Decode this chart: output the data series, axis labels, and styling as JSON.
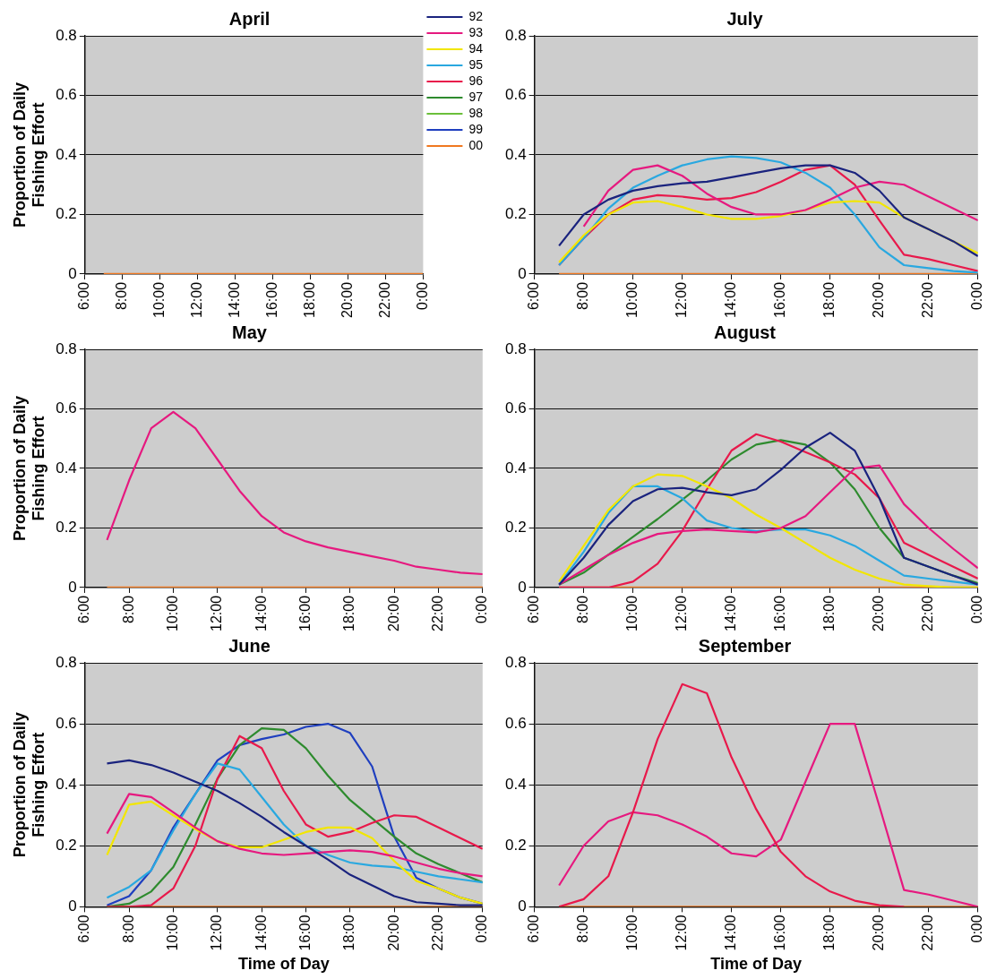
{
  "chart_data": [
    {
      "type": "line",
      "title": "April",
      "ylabel": "Proportion of Daily\nFishing Effort",
      "x": [
        7,
        8,
        9,
        10,
        11,
        12,
        13,
        14,
        15,
        16,
        17,
        18,
        19,
        20,
        21,
        22,
        23,
        24
      ],
      "xlim": [
        6,
        24
      ],
      "xticks": [
        {
          "value": 6,
          "label": "6:00"
        },
        {
          "value": 8,
          "label": "8:00"
        },
        {
          "value": 10,
          "label": "10:00"
        },
        {
          "value": 12,
          "label": "12:00"
        },
        {
          "value": 14,
          "label": "14:00"
        },
        {
          "value": 16,
          "label": "16:00"
        },
        {
          "value": 18,
          "label": "18:00"
        },
        {
          "value": 20,
          "label": "20:00"
        },
        {
          "value": 22,
          "label": "22:00"
        },
        {
          "value": 24,
          "label": "0:00"
        }
      ],
      "ylim": [
        0,
        0.8
      ],
      "yticks": [
        0,
        0.2,
        0.4,
        0.6,
        0.8
      ],
      "grid": "y",
      "legend": "top right",
      "series": [
        {
          "name": "92",
          "color": "#1a237e",
          "values": [
            null,
            null,
            null,
            null,
            null,
            null,
            null,
            null,
            null,
            null,
            null,
            null,
            null,
            null,
            null,
            null,
            null,
            null
          ]
        },
        {
          "name": "93",
          "color": "#e6197f",
          "values": [
            null,
            null,
            null,
            null,
            null,
            null,
            null,
            null,
            null,
            null,
            null,
            null,
            null,
            null,
            null,
            null,
            null,
            null
          ]
        },
        {
          "name": "94",
          "color": "#f2e600",
          "values": [
            null,
            null,
            null,
            null,
            null,
            null,
            null,
            null,
            null,
            null,
            null,
            null,
            null,
            null,
            null,
            null,
            null,
            null
          ]
        },
        {
          "name": "95",
          "color": "#29a8e0",
          "values": [
            null,
            null,
            null,
            null,
            null,
            null,
            null,
            null,
            null,
            null,
            null,
            null,
            null,
            null,
            null,
            null,
            null,
            null
          ]
        },
        {
          "name": "96",
          "color": "#e8194b",
          "values": [
            null,
            null,
            null,
            null,
            null,
            null,
            null,
            null,
            null,
            null,
            null,
            null,
            null,
            null,
            null,
            null,
            null,
            null
          ]
        },
        {
          "name": "97",
          "color": "#2e8b2e",
          "values": [
            null,
            null,
            null,
            null,
            null,
            null,
            null,
            null,
            null,
            null,
            null,
            null,
            null,
            null,
            null,
            null,
            null,
            null
          ]
        },
        {
          "name": "98",
          "color": "#6abf3a",
          "values": [
            null,
            null,
            null,
            null,
            null,
            null,
            null,
            null,
            null,
            null,
            null,
            null,
            null,
            null,
            null,
            null,
            null,
            null
          ]
        },
        {
          "name": "99",
          "color": "#1f3fbf",
          "values": [
            null,
            null,
            null,
            null,
            null,
            null,
            null,
            null,
            null,
            null,
            null,
            null,
            null,
            null,
            null,
            null,
            null,
            null
          ]
        },
        {
          "name": "00",
          "color": "#f07820",
          "values": [
            0,
            0,
            0,
            0,
            0,
            0,
            0,
            0,
            0,
            0,
            0,
            0,
            0,
            0,
            0,
            0,
            0,
            0
          ]
        }
      ]
    },
    {
      "type": "line",
      "title": "July",
      "x": [
        7,
        8,
        9,
        10,
        11,
        12,
        13,
        14,
        15,
        16,
        17,
        18,
        19,
        20,
        21,
        22,
        23,
        24
      ],
      "xlim": [
        6,
        24
      ],
      "xticks": [
        {
          "value": 6,
          "label": "6:00"
        },
        {
          "value": 8,
          "label": "8:00"
        },
        {
          "value": 10,
          "label": "10:00"
        },
        {
          "value": 12,
          "label": "12:00"
        },
        {
          "value": 14,
          "label": "14:00"
        },
        {
          "value": 16,
          "label": "16:00"
        },
        {
          "value": 18,
          "label": "18:00"
        },
        {
          "value": 20,
          "label": "20:00"
        },
        {
          "value": 22,
          "label": "22:00"
        },
        {
          "value": 24,
          "label": "0:00"
        }
      ],
      "ylim": [
        0,
        0.8
      ],
      "yticks": [
        0,
        0.2,
        0.4,
        0.6,
        0.8
      ],
      "grid": "y",
      "series": [
        {
          "color": "#1a237e",
          "values": [
            0.095,
            0.2,
            0.25,
            0.28,
            0.295,
            0.305,
            0.31,
            0.325,
            0.34,
            0.355,
            0.365,
            0.365,
            0.34,
            0.28,
            0.19,
            0.15,
            0.11,
            0.06
          ]
        },
        {
          "color": "#e6197f",
          "values": [
            null,
            0.16,
            0.28,
            0.35,
            0.365,
            0.33,
            0.27,
            0.225,
            0.2,
            0.2,
            0.215,
            0.25,
            0.29,
            0.31,
            0.3,
            0.26,
            0.22,
            0.18
          ]
        },
        {
          "color": "#f2e600",
          "values": [
            0.04,
            0.13,
            0.2,
            0.24,
            0.245,
            0.225,
            0.2,
            0.185,
            0.185,
            0.195,
            0.215,
            0.24,
            0.245,
            0.24,
            0.19,
            0.15,
            0.11,
            0.07
          ]
        },
        {
          "color": "#29a8e0",
          "values": [
            0.03,
            0.12,
            0.22,
            0.29,
            0.33,
            0.365,
            0.385,
            0.395,
            0.39,
            0.375,
            0.34,
            0.29,
            0.2,
            0.09,
            0.03,
            0.02,
            0.01,
            0.005
          ]
        },
        {
          "color": "#e8194b",
          "values": [
            0.03,
            0.12,
            0.2,
            0.25,
            0.265,
            0.26,
            0.25,
            0.255,
            0.275,
            0.31,
            0.35,
            0.365,
            0.3,
            0.18,
            0.065,
            0.05,
            0.03,
            0.01
          ]
        },
        {
          "color": "#f07820",
          "values": [
            0,
            0,
            0,
            0,
            0,
            0,
            0,
            0,
            0,
            0,
            0,
            0,
            0,
            0,
            0,
            0,
            0,
            0
          ]
        }
      ]
    },
    {
      "type": "line",
      "title": "May",
      "ylabel": "Proportion of Daily\nFishing Effort",
      "x": [
        7,
        8,
        9,
        10,
        11,
        12,
        13,
        14,
        15,
        16,
        17,
        18,
        19,
        20,
        21,
        22,
        23,
        24
      ],
      "xlim": [
        6,
        24
      ],
      "xticks": [
        {
          "value": 6,
          "label": "6:00"
        },
        {
          "value": 8,
          "label": "8:00"
        },
        {
          "value": 10,
          "label": "10:00"
        },
        {
          "value": 12,
          "label": "12:00"
        },
        {
          "value": 14,
          "label": "14:00"
        },
        {
          "value": 16,
          "label": "16:00"
        },
        {
          "value": 18,
          "label": "18:00"
        },
        {
          "value": 20,
          "label": "20:00"
        },
        {
          "value": 22,
          "label": "22:00"
        },
        {
          "value": 24,
          "label": "0:00"
        }
      ],
      "ylim": [
        0,
        0.8
      ],
      "yticks": [
        0,
        0.2,
        0.4,
        0.6,
        0.8
      ],
      "grid": "y",
      "series": [
        {
          "color": "#e6197f",
          "values": [
            0.16,
            0.36,
            0.535,
            0.59,
            0.535,
            0.43,
            0.325,
            0.24,
            0.185,
            0.155,
            0.135,
            0.12,
            0.105,
            0.09,
            0.07,
            0.06,
            0.05,
            0.045
          ]
        },
        {
          "color": "#f07820",
          "values": [
            0,
            0,
            0,
            0,
            0,
            0,
            0,
            0,
            0,
            0,
            0,
            0,
            0,
            0,
            0,
            0,
            0,
            0
          ]
        }
      ]
    },
    {
      "type": "line",
      "title": "August",
      "x": [
        7,
        8,
        9,
        10,
        11,
        12,
        13,
        14,
        15,
        16,
        17,
        18,
        19,
        20,
        21,
        22,
        23,
        24
      ],
      "xlim": [
        6,
        24
      ],
      "xticks": [
        {
          "value": 6,
          "label": "6:00"
        },
        {
          "value": 8,
          "label": "8:00"
        },
        {
          "value": 10,
          "label": "10:00"
        },
        {
          "value": 12,
          "label": "12:00"
        },
        {
          "value": 14,
          "label": "14:00"
        },
        {
          "value": 16,
          "label": "16:00"
        },
        {
          "value": 18,
          "label": "18:00"
        },
        {
          "value": 20,
          "label": "20:00"
        },
        {
          "value": 22,
          "label": "22:00"
        },
        {
          "value": 24,
          "label": "0:00"
        }
      ],
      "ylim": [
        0,
        0.8
      ],
      "yticks": [
        0,
        0.2,
        0.4,
        0.6,
        0.8
      ],
      "grid": "y",
      "series": [
        {
          "color": "#1a237e",
          "values": [
            0.01,
            0.1,
            0.21,
            0.29,
            0.33,
            0.335,
            0.32,
            0.31,
            0.33,
            0.395,
            0.47,
            0.52,
            0.46,
            0.3,
            0.1,
            0.07,
            0.04,
            0.01
          ]
        },
        {
          "color": "#e6197f",
          "values": [
            0.01,
            0.06,
            0.11,
            0.15,
            0.18,
            0.19,
            0.195,
            0.19,
            0.185,
            0.2,
            0.24,
            0.32,
            0.4,
            0.41,
            0.28,
            0.2,
            0.13,
            0.065
          ]
        },
        {
          "color": "#f2e600",
          "values": [
            0.02,
            0.14,
            0.26,
            0.34,
            0.38,
            0.375,
            0.34,
            0.3,
            0.245,
            0.2,
            0.15,
            0.1,
            0.06,
            0.03,
            0.01,
            0.005,
            0,
            0
          ]
        },
        {
          "color": "#29a8e0",
          "values": [
            0.01,
            0.12,
            0.25,
            0.34,
            0.34,
            0.3,
            0.225,
            0.2,
            0.19,
            0.195,
            0.195,
            0.175,
            0.14,
            0.09,
            0.04,
            0.03,
            0.02,
            0.01
          ]
        },
        {
          "color": "#e8194b",
          "values": [
            0,
            0,
            0,
            0.02,
            0.08,
            0.19,
            0.33,
            0.46,
            0.515,
            0.49,
            0.455,
            0.42,
            0.38,
            0.3,
            0.15,
            0.11,
            0.07,
            0.03
          ]
        },
        {
          "color": "#2e8b2e",
          "values": [
            0.01,
            0.05,
            0.11,
            0.17,
            0.23,
            0.295,
            0.36,
            0.43,
            0.48,
            0.495,
            0.48,
            0.42,
            0.33,
            0.2,
            0.1,
            0.07,
            0.04,
            0.015
          ]
        },
        {
          "color": "#f07820",
          "values": [
            0,
            0,
            0,
            0,
            0,
            0,
            0,
            0,
            0,
            0,
            0,
            0,
            0,
            0,
            0,
            0,
            0,
            0
          ]
        }
      ]
    },
    {
      "type": "line",
      "title": "June",
      "ylabel": "Proportion of Daily\nFishing Effort",
      "xlabel": "Time of Day",
      "x": [
        7,
        8,
        9,
        10,
        11,
        12,
        13,
        14,
        15,
        16,
        17,
        18,
        19,
        20,
        21,
        22,
        23,
        24
      ],
      "xlim": [
        6,
        24
      ],
      "xticks": [
        {
          "value": 6,
          "label": "6:00"
        },
        {
          "value": 8,
          "label": "8:00"
        },
        {
          "value": 10,
          "label": "10:00"
        },
        {
          "value": 12,
          "label": "12:00"
        },
        {
          "value": 14,
          "label": "14:00"
        },
        {
          "value": 16,
          "label": "16:00"
        },
        {
          "value": 18,
          "label": "18:00"
        },
        {
          "value": 20,
          "label": "20:00"
        },
        {
          "value": 22,
          "label": "22:00"
        },
        {
          "value": 24,
          "label": "0:00"
        }
      ],
      "ylim": [
        0,
        0.8
      ],
      "yticks": [
        0,
        0.2,
        0.4,
        0.6,
        0.8
      ],
      "grid": "y",
      "series": [
        {
          "color": "#1a237e",
          "values": [
            0.47,
            0.48,
            0.465,
            0.44,
            0.41,
            0.38,
            0.34,
            0.295,
            0.245,
            0.2,
            0.155,
            0.105,
            0.07,
            0.035,
            0.015,
            0.01,
            0.005,
            0.005
          ]
        },
        {
          "color": "#e6197f",
          "values": [
            0.24,
            0.37,
            0.36,
            0.31,
            0.26,
            0.215,
            0.19,
            0.175,
            0.17,
            0.175,
            0.18,
            0.185,
            0.18,
            0.165,
            0.145,
            0.125,
            0.11,
            0.1
          ]
        },
        {
          "color": "#f2e600",
          "values": [
            0.17,
            0.335,
            0.345,
            0.3,
            0.255,
            0.215,
            0.195,
            0.195,
            0.22,
            0.245,
            0.26,
            0.26,
            0.225,
            0.15,
            0.085,
            0.06,
            0.03,
            0.01
          ]
        },
        {
          "color": "#29a8e0",
          "values": [
            0.03,
            0.065,
            0.12,
            0.25,
            0.37,
            0.47,
            0.45,
            0.36,
            0.27,
            0.2,
            0.17,
            0.145,
            0.135,
            0.13,
            0.115,
            0.1,
            0.09,
            0.08
          ]
        },
        {
          "color": "#e8194b",
          "values": [
            0,
            0,
            0.005,
            0.06,
            0.2,
            0.42,
            0.56,
            0.52,
            0.38,
            0.27,
            0.23,
            0.245,
            0.275,
            0.3,
            0.295,
            0.26,
            0.225,
            0.19
          ]
        },
        {
          "color": "#2e8b2e",
          "values": [
            0,
            0.01,
            0.05,
            0.13,
            0.27,
            0.42,
            0.53,
            0.585,
            0.58,
            0.52,
            0.43,
            0.35,
            0.29,
            0.23,
            0.175,
            0.14,
            0.11,
            0.08
          ]
        },
        {
          "color": "#1f3fbf",
          "values": [
            0.005,
            0.035,
            0.12,
            0.26,
            0.37,
            0.48,
            0.53,
            0.55,
            0.565,
            0.59,
            0.6,
            0.57,
            0.46,
            0.23,
            0.095,
            0.06,
            0.03,
            0.01
          ]
        },
        {
          "color": "#f07820",
          "values": [
            0,
            0,
            0,
            0,
            0,
            0,
            0,
            0,
            0,
            0,
            0,
            0,
            0,
            0,
            0,
            0,
            0,
            0
          ]
        }
      ]
    },
    {
      "type": "line",
      "title": "September",
      "xlabel": "Time of Day",
      "x": [
        7,
        8,
        9,
        10,
        11,
        12,
        13,
        14,
        15,
        16,
        17,
        18,
        19,
        20,
        21,
        22,
        23,
        24
      ],
      "xlim": [
        6,
        24
      ],
      "xticks": [
        {
          "value": 6,
          "label": "6:00"
        },
        {
          "value": 8,
          "label": "8:00"
        },
        {
          "value": 10,
          "label": "10:00"
        },
        {
          "value": 12,
          "label": "12:00"
        },
        {
          "value": 14,
          "label": "14:00"
        },
        {
          "value": 16,
          "label": "16:00"
        },
        {
          "value": 18,
          "label": "18:00"
        },
        {
          "value": 20,
          "label": "20:00"
        },
        {
          "value": 22,
          "label": "22:00"
        },
        {
          "value": 24,
          "label": "0:00"
        }
      ],
      "ylim": [
        0,
        0.8
      ],
      "yticks": [
        0,
        0.2,
        0.4,
        0.6,
        0.8
      ],
      "grid": "y",
      "series": [
        {
          "color": "#e8194b",
          "values": [
            0,
            0.025,
            0.1,
            0.31,
            0.55,
            0.73,
            0.7,
            0.49,
            0.32,
            0.18,
            0.1,
            0.05,
            0.02,
            0.005,
            0,
            null,
            null,
            null
          ]
        },
        {
          "color": "#e6197f",
          "values": [
            0.07,
            0.2,
            0.28,
            0.31,
            0.3,
            0.27,
            0.23,
            0.175,
            0.165,
            0.22,
            0.41,
            0.6,
            0.6,
            0.33,
            0.055,
            0.04,
            0.02,
            0
          ]
        },
        {
          "color": "#f07820",
          "values": [
            0,
            0,
            0,
            0,
            0,
            0,
            0,
            0,
            0,
            0,
            0,
            0,
            0,
            0,
            0,
            0,
            0,
            0
          ]
        }
      ]
    }
  ]
}
